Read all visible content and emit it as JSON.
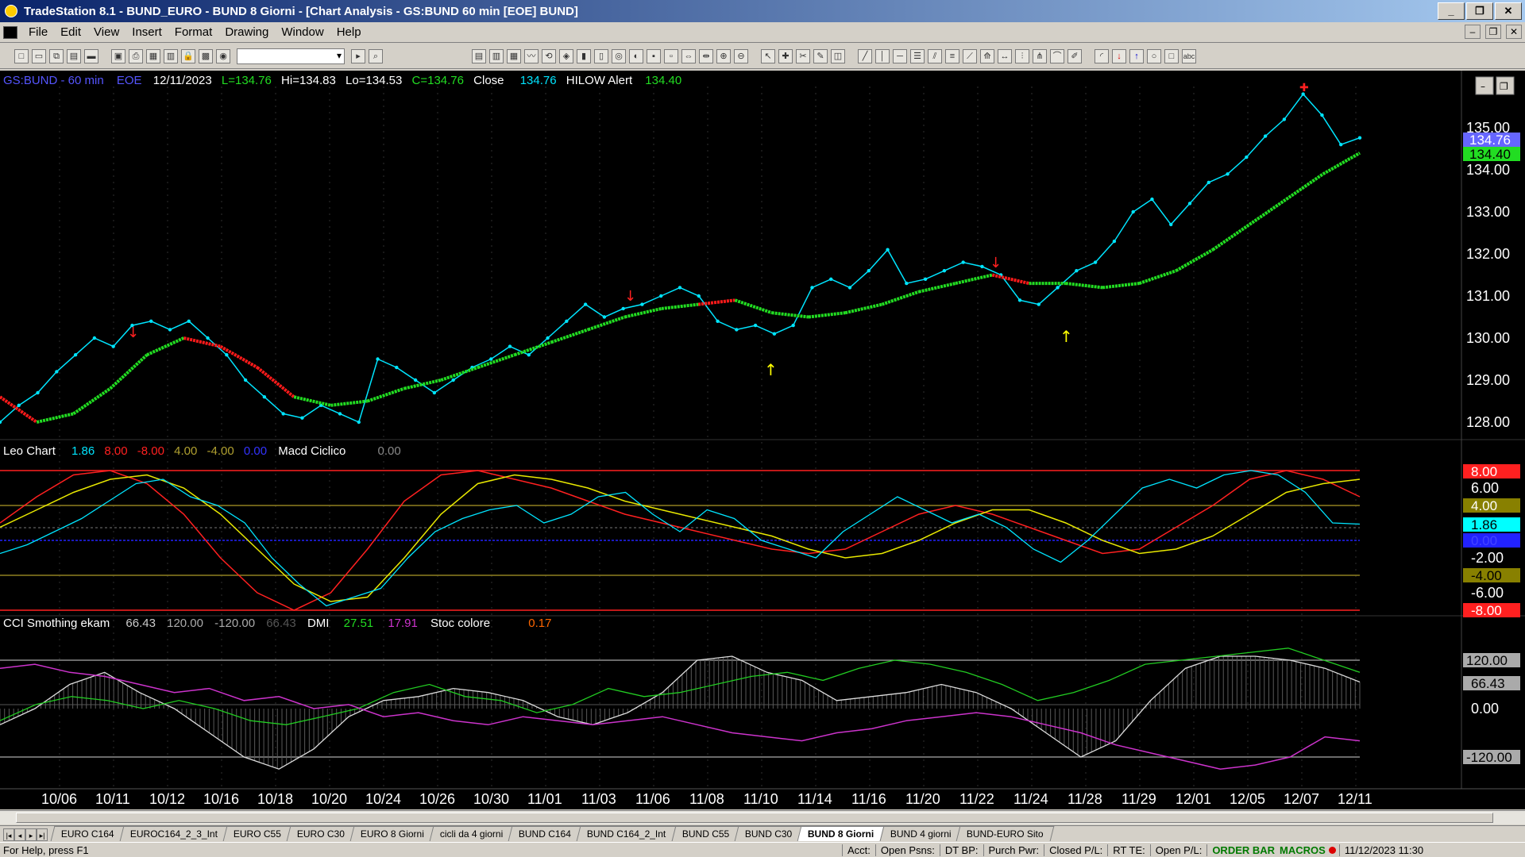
{
  "window": {
    "title": "TradeStation 8.1 - BUND_EURO - BUND 8 Giorni - [Chart Analysis - GS:BUND  60 min  [EOE] BUND]",
    "buttons": [
      "_",
      "❐",
      "✕"
    ]
  },
  "menu": {
    "items": [
      "File",
      "Edit",
      "View",
      "Insert",
      "Format",
      "Drawing",
      "Window",
      "Help"
    ]
  },
  "toolbar": {
    "combo_value": ""
  },
  "chart": {
    "main_header": {
      "symbol": "GS:BUND - 60 min",
      "session": "EOE",
      "date": "12/11/2023",
      "last": "L=134.76",
      "high": "Hi=134.83",
      "low": "Lo=134.53",
      "close": "C=134.76",
      "close_label": "Close",
      "close_value": "134.76",
      "hilow_label": "HILOW Alert",
      "hilow_value": "134.40"
    },
    "price_axis": [
      "135.00",
      "134.00",
      "133.00",
      "132.00",
      "131.00",
      "130.00",
      "129.00",
      "128.00"
    ],
    "price_marker_last": "134.76",
    "price_marker_hilow": "134.40",
    "leo_header": {
      "name": "Leo Chart",
      "v1": "1.86",
      "v2": "8.00",
      "v3": "-8.00",
      "v4": "4.00",
      "v5": "-4.00",
      "v6": "0.00",
      "macd_label": "Macd Ciclico",
      "macd_value": "0.00"
    },
    "leo_axis": [
      "6.00",
      "-2.00",
      "-6.00"
    ],
    "leo_markers": {
      "top": "8.00",
      "four": "4.00",
      "current": "1.86",
      "zero": "0.00",
      "neg_four": "-4.00",
      "neg_eight": "-8.00"
    },
    "cci_header": {
      "name": "CCI Smothing ekam",
      "v1": "66.43",
      "v2": "120.00",
      "v3": "-120.00",
      "v4": "66.43",
      "dmi_label": "DMI",
      "dmi_v1": "27.51",
      "dmi_v2": "17.91",
      "stoc_label": "Stoc colore",
      "stoc_value": "0.17"
    },
    "cci_axis": [
      "0.00"
    ],
    "cci_markers": {
      "top": "120.00",
      "current": "66.43",
      "bottom": "-120.00"
    },
    "date_axis": [
      "10/06",
      "10/11",
      "10/12",
      "10/16",
      "10/18",
      "10/20",
      "10/24",
      "10/26",
      "10/30",
      "11/01",
      "11/03",
      "11/06",
      "11/08",
      "11/10",
      "11/14",
      "11/16",
      "11/20",
      "11/22",
      "11/24",
      "11/28",
      "11/29",
      "12/01",
      "12/05",
      "12/07",
      "12/11"
    ],
    "price_series": [
      128.0,
      128.4,
      128.7,
      129.2,
      129.6,
      130.0,
      129.8,
      130.3,
      130.4,
      130.2,
      130.4,
      130.0,
      129.6,
      129.0,
      128.6,
      128.2,
      128.1,
      128.4,
      128.2,
      128.0,
      129.5,
      129.3,
      129.0,
      128.7,
      129.0,
      129.3,
      129.5,
      129.8,
      129.6,
      130.0,
      130.4,
      130.8,
      130.5,
      130.7,
      130.8,
      131.0,
      131.2,
      131.0,
      130.4,
      130.2,
      130.3,
      130.1,
      130.3,
      131.2,
      131.4,
      131.2,
      131.6,
      132.1,
      131.3,
      131.4,
      131.6,
      131.8,
      131.7,
      131.5,
      130.9,
      130.8,
      131.2,
      131.6,
      131.8,
      132.3,
      133.0,
      133.3,
      132.7,
      133.2,
      133.7,
      133.9,
      134.3,
      134.8,
      135.2,
      135.8,
      135.3,
      134.6,
      134.76
    ],
    "hilow_series": [
      128.6,
      128.0,
      128.2,
      128.8,
      129.6,
      130.0,
      129.8,
      129.3,
      128.6,
      128.4,
      128.5,
      128.8,
      129.0,
      129.3,
      129.6,
      129.9,
      130.2,
      130.5,
      130.7,
      130.8,
      130.9,
      130.6,
      130.5,
      130.6,
      130.8,
      131.1,
      131.3,
      131.5,
      131.3,
      131.3,
      131.2,
      131.3,
      131.6,
      132.1,
      132.7,
      133.3,
      133.9,
      134.4
    ],
    "hilow_red_segments": [
      [
        0,
        1
      ],
      [
        5,
        8
      ],
      [
        19,
        20
      ],
      [
        27,
        28
      ]
    ],
    "leo_cyan_series": [
      -1.5,
      -0.5,
      1.0,
      2.5,
      4.5,
      6.5,
      7.0,
      5.0,
      4.0,
      2.0,
      -2.0,
      -5.0,
      -7.5,
      -6.5,
      -5.5,
      -2.0,
      1.0,
      2.5,
      3.5,
      4.0,
      2.0,
      3.0,
      5.0,
      5.5,
      3.0,
      1.0,
      3.5,
      2.5,
      0.0,
      -1.0,
      -2.0,
      1.0,
      3.0,
      5.0,
      3.5,
      2.0,
      3.0,
      1.5,
      -1.0,
      -2.5,
      0.0,
      3.0,
      6.0,
      7.0,
      6.0,
      7.5,
      8.0,
      7.5,
      5.5,
      2.0,
      1.86
    ],
    "leo_red_series": [
      2.0,
      5.0,
      7.5,
      8.0,
      6.5,
      3.0,
      -2.0,
      -6.0,
      -8.0,
      -6.0,
      -1.0,
      4.5,
      7.5,
      8.0,
      7.0,
      6.0,
      4.5,
      3.0,
      2.0,
      1.0,
      0.0,
      -1.0,
      -1.5,
      -1.0,
      1.0,
      3.0,
      4.0,
      3.0,
      1.5,
      0.0,
      -1.5,
      -1.0,
      1.5,
      4.0,
      7.0,
      8.0,
      7.0,
      5.0
    ],
    "leo_yellow_series": [
      1.5,
      3.5,
      5.5,
      7.0,
      7.5,
      6.0,
      3.0,
      -1.0,
      -5.0,
      -7.0,
      -6.5,
      -2.0,
      3.0,
      6.5,
      7.5,
      7.0,
      6.0,
      4.5,
      3.5,
      2.5,
      1.5,
      0.5,
      -1.0,
      -2.0,
      -1.5,
      0.0,
      2.0,
      3.5,
      3.5,
      2.0,
      0.0,
      -1.5,
      -1.0,
      0.5,
      3.0,
      5.5,
      6.5,
      7.0
    ],
    "cci_white_series": [
      -40,
      0,
      60,
      90,
      40,
      0,
      -60,
      -120,
      -150,
      -100,
      -20,
      20,
      30,
      50,
      40,
      20,
      -20,
      -40,
      -10,
      40,
      120,
      130,
      90,
      70,
      20,
      30,
      40,
      60,
      40,
      0,
      -60,
      -120,
      -80,
      20,
      100,
      130,
      130,
      120,
      100,
      66
    ],
    "cci_green_series": [
      -30,
      10,
      30,
      20,
      0,
      20,
      0,
      -30,
      -40,
      -20,
      0,
      40,
      60,
      30,
      20,
      -10,
      10,
      50,
      30,
      40,
      60,
      80,
      90,
      70,
      100,
      120,
      110,
      90,
      60,
      20,
      40,
      70,
      110,
      120,
      130,
      140,
      150,
      120,
      90
    ],
    "cci_magenta_series": [
      100,
      110,
      90,
      80,
      60,
      40,
      50,
      20,
      30,
      0,
      10,
      -20,
      -10,
      -30,
      -40,
      -20,
      -30,
      -40,
      -30,
      -20,
      -40,
      -60,
      -70,
      -80,
      -60,
      -50,
      -30,
      -20,
      -10,
      -20,
      -40,
      -60,
      -90,
      -110,
      -130,
      -150,
      -140,
      -120,
      -70,
      -80
    ],
    "colors": {
      "bg": "#000000",
      "price": "#00e5ff",
      "hilow_green": "#22dd22",
      "hilow_red": "#ff1a1a",
      "leo_yellow": "#e8e800",
      "leo_red": "#ff2020",
      "cci_white": "#dddddd",
      "cci_green": "#22cc22",
      "cci_magenta": "#cc33cc",
      "stoc_orange": "#ff6600"
    }
  },
  "tabs": [
    "EURO C164",
    "EUROC164_2_3_Int",
    "EURO C55",
    "EURO C30",
    "EURO 8 Giorni",
    "cicli da 4 giorni",
    "BUND C164",
    "BUND C164_2_Int",
    "BUND C55",
    "BUND  C30",
    "BUND 8 Giorni",
    "BUND 4 giorni",
    "BUND-EURO Sito"
  ],
  "active_tab": "BUND 8 Giorni",
  "statusbar": {
    "help": "For Help, press F1",
    "acct": "Acct:",
    "open_psns": "Open Psns:",
    "dt_bp": "DT BP:",
    "purch_pwr": "Purch Pwr:",
    "closed_pl": "Closed P/L:",
    "rt_te": "RT TE:",
    "open_pl": "Open P/L:",
    "order_bar": "ORDER BAR",
    "macros": "MACROS",
    "datetime": "11/12/2023 11:30"
  }
}
